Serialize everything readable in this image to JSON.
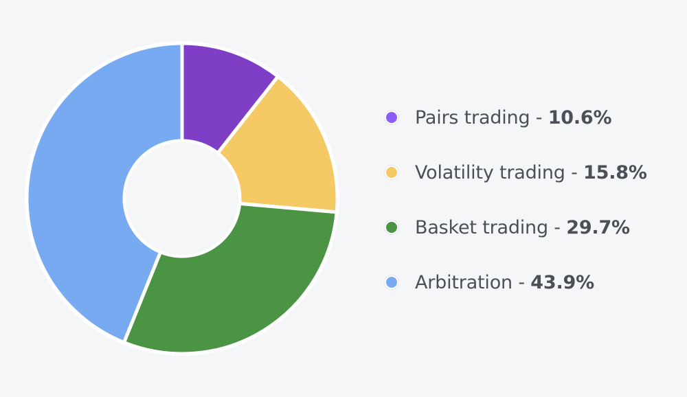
{
  "chart_data": {
    "type": "pie",
    "variant": "donut",
    "start": "top",
    "direction": "clockwise",
    "legend_position": "right",
    "slices": [
      {
        "label": "Pairs trading",
        "value": 10.6,
        "display": "10.6%",
        "color": "#7e3fc6",
        "legend_color": "#8b5cf6"
      },
      {
        "label": "Volatility trading",
        "value": 15.8,
        "display": "15.8%",
        "color": "#f5c963",
        "legend_color": "#f5c963"
      },
      {
        "label": "Basket trading",
        "value": 29.7,
        "display": "29.7%",
        "color": "#4a9444",
        "legend_color": "#4a9444"
      },
      {
        "label": "Arbitration",
        "value": 43.9,
        "display": "43.9%",
        "color": "#78aaf2",
        "legend_color": "#78aaf2"
      }
    ]
  }
}
